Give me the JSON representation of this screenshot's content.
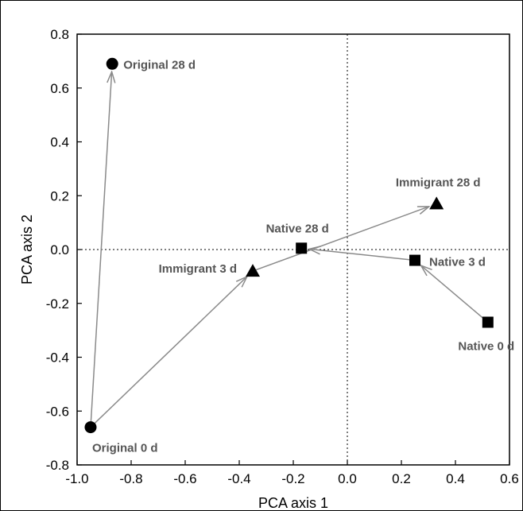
{
  "chart_data": {
    "type": "scatter",
    "title": "",
    "xlabel": "PCA axis 1",
    "ylabel": "PCA axis 2",
    "xlim": [
      -1.0,
      0.6
    ],
    "ylim": [
      -0.8,
      0.8
    ],
    "xticks": [
      "-1.0",
      "-0.8",
      "-0.6",
      "-0.4",
      "-0.2",
      "0.0",
      "0.2",
      "0.4",
      "0.6"
    ],
    "yticks": [
      "0.8",
      "0.6",
      "0.4",
      "0.2",
      "0.0",
      "-0.2",
      "-0.4",
      "-0.6",
      "-0.8"
    ],
    "grid": false,
    "reference_lines": "dotted lines at x = 0 and y = 0",
    "colors": {
      "marker": "#000000",
      "arrow": "#8a8a8a",
      "label": "#555555"
    },
    "points": [
      {
        "id": "orig0",
        "label": "Original 0 d",
        "x": -0.95,
        "y": -0.66,
        "marker": "circle"
      },
      {
        "id": "orig28",
        "label": "Original 28 d",
        "x": -0.87,
        "y": 0.69,
        "marker": "circle"
      },
      {
        "id": "imm3",
        "label": "Immigrant 3 d",
        "x": -0.35,
        "y": -0.08,
        "marker": "triangle"
      },
      {
        "id": "imm28",
        "label": "Immigrant 28 d",
        "x": 0.33,
        "y": 0.17,
        "marker": "triangle"
      },
      {
        "id": "nat0",
        "label": "Native 0 d",
        "x": 0.52,
        "y": -0.27,
        "marker": "square"
      },
      {
        "id": "nat3",
        "label": "Native 3 d",
        "x": 0.25,
        "y": -0.04,
        "marker": "square"
      },
      {
        "id": "nat28",
        "label": "Native 28 d",
        "x": -0.17,
        "y": 0.005,
        "marker": "square"
      }
    ],
    "arrows": [
      {
        "from": "orig0",
        "to": "orig28"
      },
      {
        "from": "orig0",
        "to": "imm3"
      },
      {
        "from": "imm3",
        "to": "imm28"
      },
      {
        "from": "nat0",
        "to": "nat3"
      },
      {
        "from": "nat3",
        "to": "nat28"
      }
    ]
  }
}
